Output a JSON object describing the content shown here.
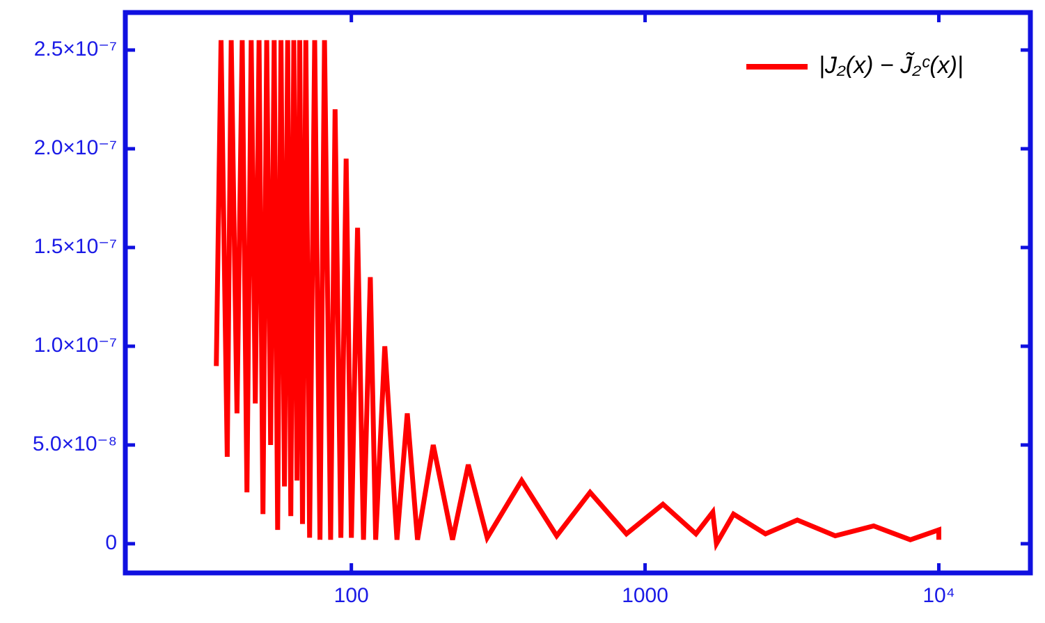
{
  "chart_data": {
    "type": "line",
    "xlog": true,
    "xlim": [
      17,
      20500
    ],
    "ylim": [
      -1.48e-08,
      2.69e-07
    ],
    "xticks": [
      100,
      1000,
      {
        "value": 10000,
        "label": "10⁴"
      }
    ],
    "yticks": [
      0,
      {
        "value": 5e-08,
        "label": "5.0×10⁻⁸"
      },
      {
        "value": 1e-07,
        "label": "1.0×10⁻⁷"
      },
      {
        "value": 1.5e-07,
        "label": "1.5×10⁻⁷"
      },
      {
        "value": 2e-07,
        "label": "2.0×10⁻⁷"
      },
      {
        "value": 2.5e-07,
        "label": "2.5×10⁻⁷"
      }
    ],
    "legend": "upper right",
    "series": [
      {
        "name": "|J₂(x) − J̃₂ᶜ(x)|",
        "color": "#ff0000",
        "x": [
          34.7,
          36,
          37.8,
          39,
          40.8,
          42.5,
          44.1,
          45.6,
          47.1,
          48.5,
          50,
          51.5,
          53.1,
          54.6,
          56.1,
          57.6,
          59.2,
          60.7,
          62.2,
          63.7,
          65.3,
          66.7,
          68.2,
          70,
          72.1,
          75,
          78.2,
          81,
          85,
          88,
          92.1,
          96,
          100,
          105,
          110,
          116,
          121,
          130,
          143,
          155,
          168,
          190,
          221,
          250,
          290,
          380,
          500,
          650,
          864,
          1150,
          1490,
          1700,
          1750,
          2000,
          2570,
          3300,
          4440,
          6000,
          8000,
          10000,
          10000
        ],
        "values": [
          9e-08,
          2.55e-07,
          4.4e-08,
          2.55e-07,
          6.6e-08,
          2.55e-07,
          2.6e-08,
          2.55e-07,
          7.1e-08,
          2.55e-07,
          1.5e-08,
          2.55e-07,
          5e-08,
          2.55e-07,
          7e-09,
          2.55e-07,
          2.9e-08,
          2.55e-07,
          1.4e-08,
          2.55e-07,
          3.2e-08,
          2.55e-07,
          1e-08,
          2.55e-07,
          3e-09,
          2.55e-07,
          2e-09,
          2.55e-07,
          2e-09,
          2.2e-07,
          3e-09,
          1.95e-07,
          3e-09,
          1.6e-07,
          2e-09,
          1.35e-07,
          2e-09,
          1e-07,
          2e-09,
          6.6e-08,
          2e-09,
          5e-08,
          2e-09,
          4e-08,
          3e-09,
          3.2e-08,
          4e-09,
          2.6e-08,
          5e-09,
          2e-08,
          5e-09,
          1.6e-08,
          0,
          1.5e-08,
          5e-09,
          1.2e-08,
          4e-09,
          9e-09,
          2e-09,
          7e-09,
          2e-09
        ]
      }
    ]
  }
}
